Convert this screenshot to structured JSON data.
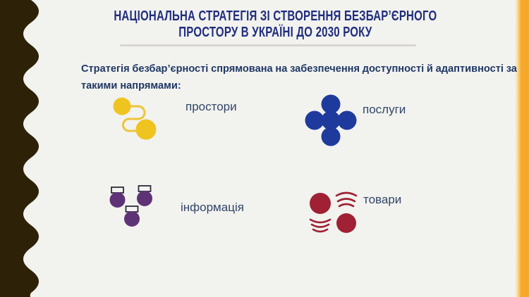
{
  "slide": {
    "title": {
      "line1": "НАЦІОНАЛЬНА СТРАТЕГІЯ ЗІ СТВОРЕННЯ БЕЗБАР’ЄРНОГО",
      "line2": "ПРОСТОРУ В УКРАЇНІ ДО 2030 РОКУ"
    },
    "intro": {
      "line1": "Стратегія безбар’єрності спрямована на забезпечення доступності й адаптивності за",
      "line2": "такими напрямами:"
    },
    "items": [
      {
        "label": "простори",
        "icon": "route-path-icon",
        "color": "#efc421"
      },
      {
        "label": "послуги",
        "icon": "circle-cross-icon",
        "color": "#1e3a9c"
      },
      {
        "label": "інформація",
        "icon": "signpost-circles-icon",
        "color": "#5e3375"
      },
      {
        "label": "товари",
        "icon": "moving-circles-icon",
        "color": "#a02133"
      }
    ],
    "colors": {
      "background": "#f2f2ef",
      "left_band": "#2d2208",
      "right_stripe": "#f6a928",
      "title_text": "#202d7d",
      "body_text": "#1f3864",
      "label_text": "#334668"
    }
  }
}
